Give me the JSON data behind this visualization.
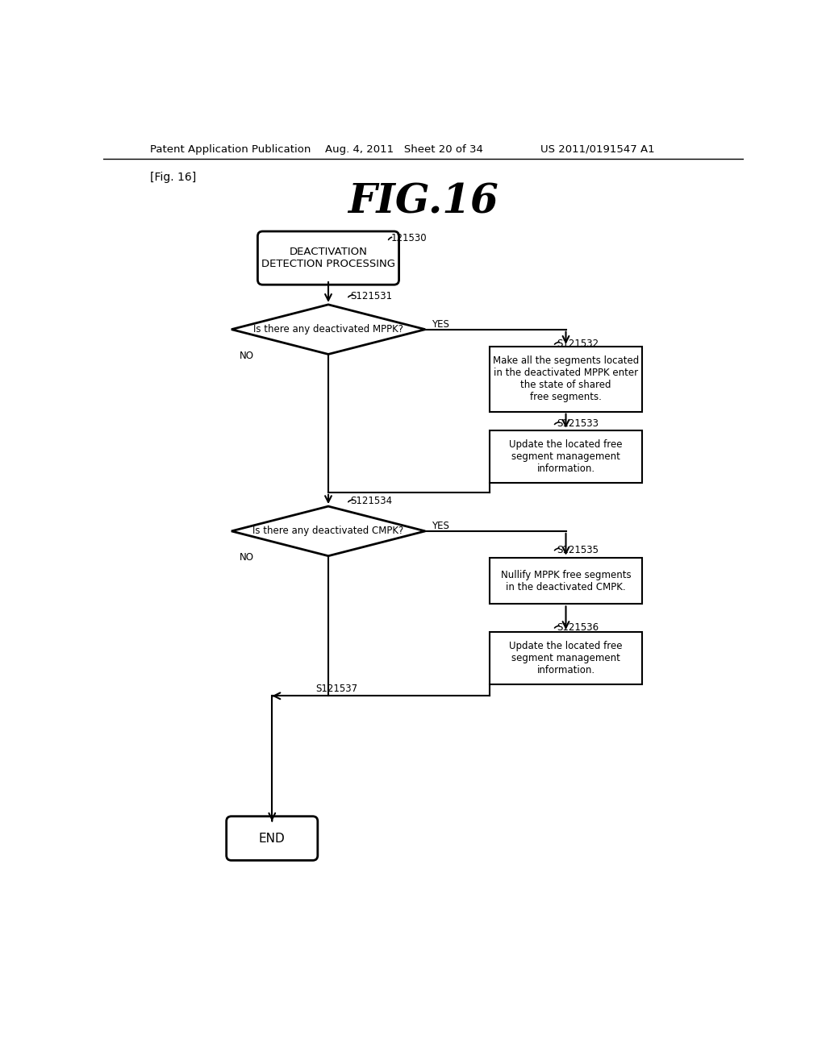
{
  "bg_color": "#ffffff",
  "header_left": "Patent Application Publication",
  "header_center": "Aug. 4, 2011   Sheet 20 of 34",
  "header_right": "US 2011/0191547 A1",
  "fig_label": "[Fig. 16]",
  "fig_title": "FIG.16",
  "start_label": "121530",
  "start_text": "DEACTIVATION\nDETECTION PROCESSING",
  "d1_label": "S121531",
  "d1_text": "Is there any deactivated MPPK?",
  "box1_label": "S121532",
  "box1_text": "Make all the segments located\nin the deactivated MPPK enter\nthe state of shared\nfree segments.",
  "box2_label": "S121533",
  "box2_text": "Update the located free\nsegment management\ninformation.",
  "d2_label": "S121534",
  "d2_text": "Is there any deactivated CMPK?",
  "box3_label": "S121535",
  "box3_text": "Nullify MPPK free segments\nin the deactivated CMPK.",
  "box4_label": "S121536",
  "box4_text": "Update the located free\nsegment management\ninformation.",
  "end_label": "S121537",
  "end_text": "END",
  "yes_text": "YES",
  "no_text": "NO"
}
